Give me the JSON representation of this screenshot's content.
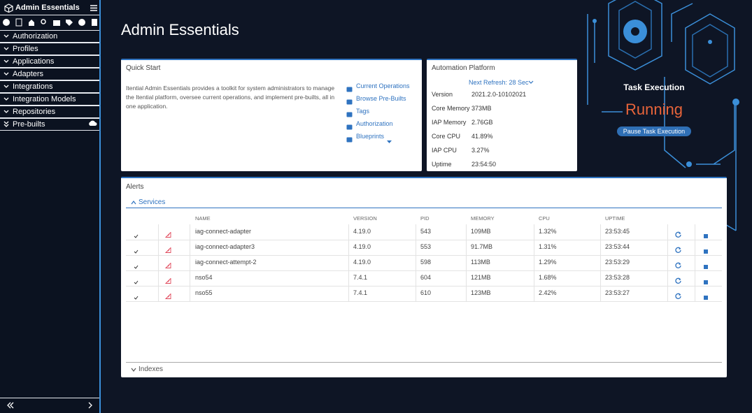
{
  "sidebar": {
    "title": "Admin Essentials",
    "nav": [
      "Authorization",
      "Profiles",
      "Applications",
      "Adapters",
      "Integrations",
      "Integration Models",
      "Repositories",
      "Pre-builts"
    ]
  },
  "page_title": "Admin Essentials",
  "quick_start": {
    "title": "Quick Start",
    "description": "Itential Admin Essentials provides a toolkit for system administrators to manage the Itential platform, oversee current operations, and implement pre-builts, all in one application.",
    "links": [
      "Current Operations",
      "Browse Pre-Builts",
      "Tags",
      "Authorization",
      "Blueprints"
    ]
  },
  "automation_platform": {
    "title": "Automation Platform",
    "refresh": "Next Refresh: 28 Sec",
    "rows": [
      [
        "Version",
        "2021.2.0-10102021"
      ],
      [
        "Core Memory",
        "373MB"
      ],
      [
        "IAP Memory",
        "2.76GB"
      ],
      [
        "Core CPU",
        "41.89%"
      ],
      [
        "IAP CPU",
        "3.27%"
      ],
      [
        "Uptime",
        "23:54:50"
      ]
    ]
  },
  "task_execution": {
    "title": "Task Execution",
    "status": "Running",
    "button": "Pause Task Execution"
  },
  "alerts": {
    "title": "Alerts",
    "services_label": "Services",
    "columns": [
      "NAME",
      "VERSION",
      "PID",
      "MEMORY",
      "CPU",
      "UPTIME"
    ],
    "rows": [
      [
        "iag-connect-adapter",
        "4.19.0",
        "543",
        "109MB",
        "1.32%",
        "23:53:45"
      ],
      [
        "iag-connect-adapter3",
        "4.19.0",
        "553",
        "91.7MB",
        "1.31%",
        "23:53:44"
      ],
      [
        "iag-connect-attempt-2",
        "4.19.0",
        "598",
        "113MB",
        "1.29%",
        "23:53:29"
      ],
      [
        "nso54",
        "7.4.1",
        "604",
        "121MB",
        "1.68%",
        "23:53:28"
      ],
      [
        "nso55",
        "7.4.1",
        "610",
        "123MB",
        "2.42%",
        "23:53:27"
      ]
    ],
    "indexes_label": "Indexes"
  }
}
